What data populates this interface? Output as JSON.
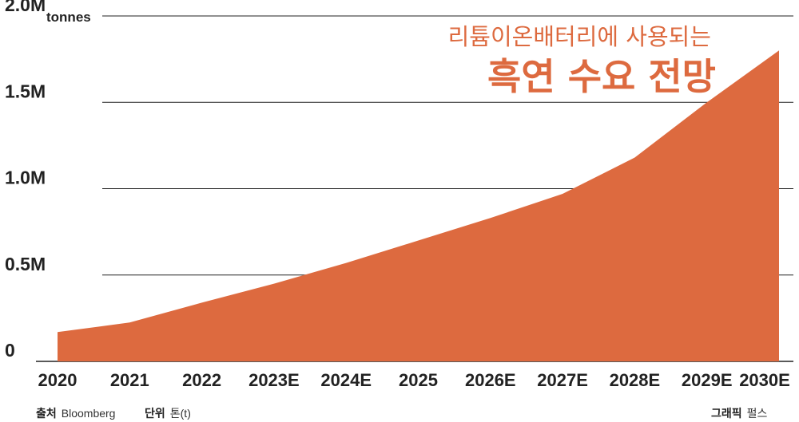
{
  "chart_data": {
    "type": "area",
    "title_line1": "리튬이온배터리에 사용되는",
    "title_line2": "흑연 수요 전망",
    "y_unit": "tonnes",
    "ylim": [
      0,
      2000000
    ],
    "y_ticks": [
      {
        "value": 0,
        "label": "0"
      },
      {
        "value": 500000,
        "label": "0.5M"
      },
      {
        "value": 1000000,
        "label": "1.0M"
      },
      {
        "value": 1500000,
        "label": "1.5M"
      },
      {
        "value": 2000000,
        "label": "2.0M"
      }
    ],
    "categories": [
      "2020",
      "2021",
      "2022",
      "2023E",
      "2024E",
      "2025",
      "2026E",
      "2027E",
      "2028E",
      "2029E",
      "2030E"
    ],
    "values": [
      170000,
      225000,
      340000,
      450000,
      570000,
      700000,
      830000,
      970000,
      1180000,
      1500000,
      1800000
    ],
    "color": "#dd6a3f",
    "grid": true
  },
  "footer": {
    "source_label": "출처",
    "source_value": "Bloomberg",
    "unit_label": "단위",
    "unit_value": "톤(t)",
    "graphic_label": "그래픽",
    "graphic_value": "펄스"
  }
}
